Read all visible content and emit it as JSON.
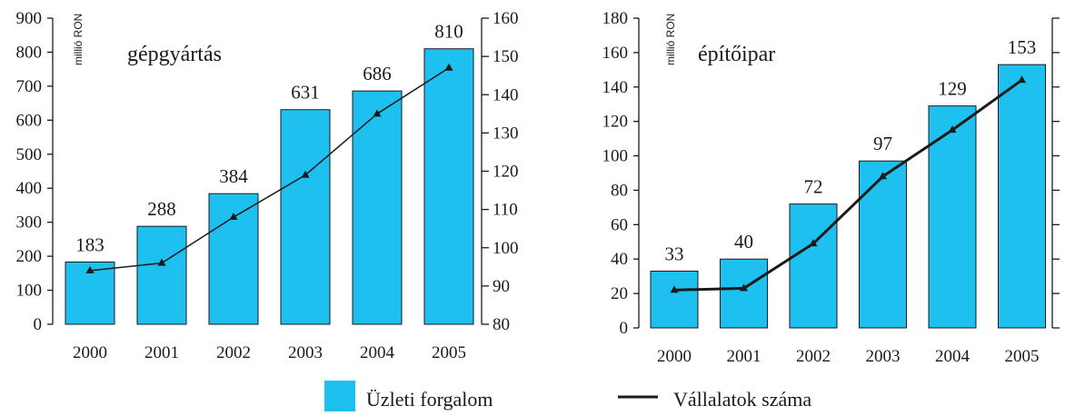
{
  "colors": {
    "bar": "#1ec0ef",
    "bar_edge": "#1a1a1a",
    "line": "#1a1a1a",
    "axis": "#1a1a1a"
  },
  "legend": {
    "bar_label": "Üzleti forgalom",
    "line_label": "Vállalatok száma"
  },
  "chart_data": [
    {
      "type": "bar",
      "title": "gépgyártás",
      "ylabel": "millió RON",
      "categories": [
        "2000",
        "2001",
        "2002",
        "2003",
        "2004",
        "2005"
      ],
      "series": [
        {
          "name": "Üzleti forgalom",
          "type": "bar",
          "values": [
            183,
            288,
            384,
            631,
            686,
            810
          ],
          "labels": [
            "183",
            "288",
            "384",
            "631",
            "686",
            "810"
          ]
        },
        {
          "name": "Vállalatok száma",
          "type": "line",
          "axis": "right",
          "values": [
            94,
            96,
            108,
            119,
            135,
            147
          ]
        }
      ],
      "ylim": [
        0,
        900
      ],
      "yticks": [
        "0",
        "100",
        "200",
        "300",
        "400",
        "500",
        "600",
        "700",
        "800",
        "900"
      ],
      "y2lim": [
        80,
        160
      ],
      "y2ticks": [
        "80",
        "90",
        "100",
        "110",
        "120",
        "130",
        "140",
        "150",
        "160"
      ]
    },
    {
      "type": "bar",
      "title": "építőipar",
      "ylabel": "millió RON",
      "categories": [
        "2000",
        "2001",
        "2002",
        "2003",
        "2004",
        "2005"
      ],
      "series": [
        {
          "name": "Üzleti forgalom",
          "type": "bar",
          "values": [
            33,
            40,
            72,
            97,
            129,
            153
          ],
          "labels": [
            "33",
            "40",
            "72",
            "97",
            "129",
            "153"
          ]
        },
        {
          "name": "Vállalatok száma",
          "type": "line",
          "axis": "left",
          "values": [
            22,
            23,
            49,
            88,
            115,
            144
          ]
        }
      ],
      "ylim": [
        0,
        180
      ],
      "yticks": [
        "0",
        "20",
        "40",
        "60",
        "80",
        "100",
        "120",
        "140",
        "160",
        "180"
      ],
      "right_axis_ticks_unlabeled": true
    }
  ]
}
